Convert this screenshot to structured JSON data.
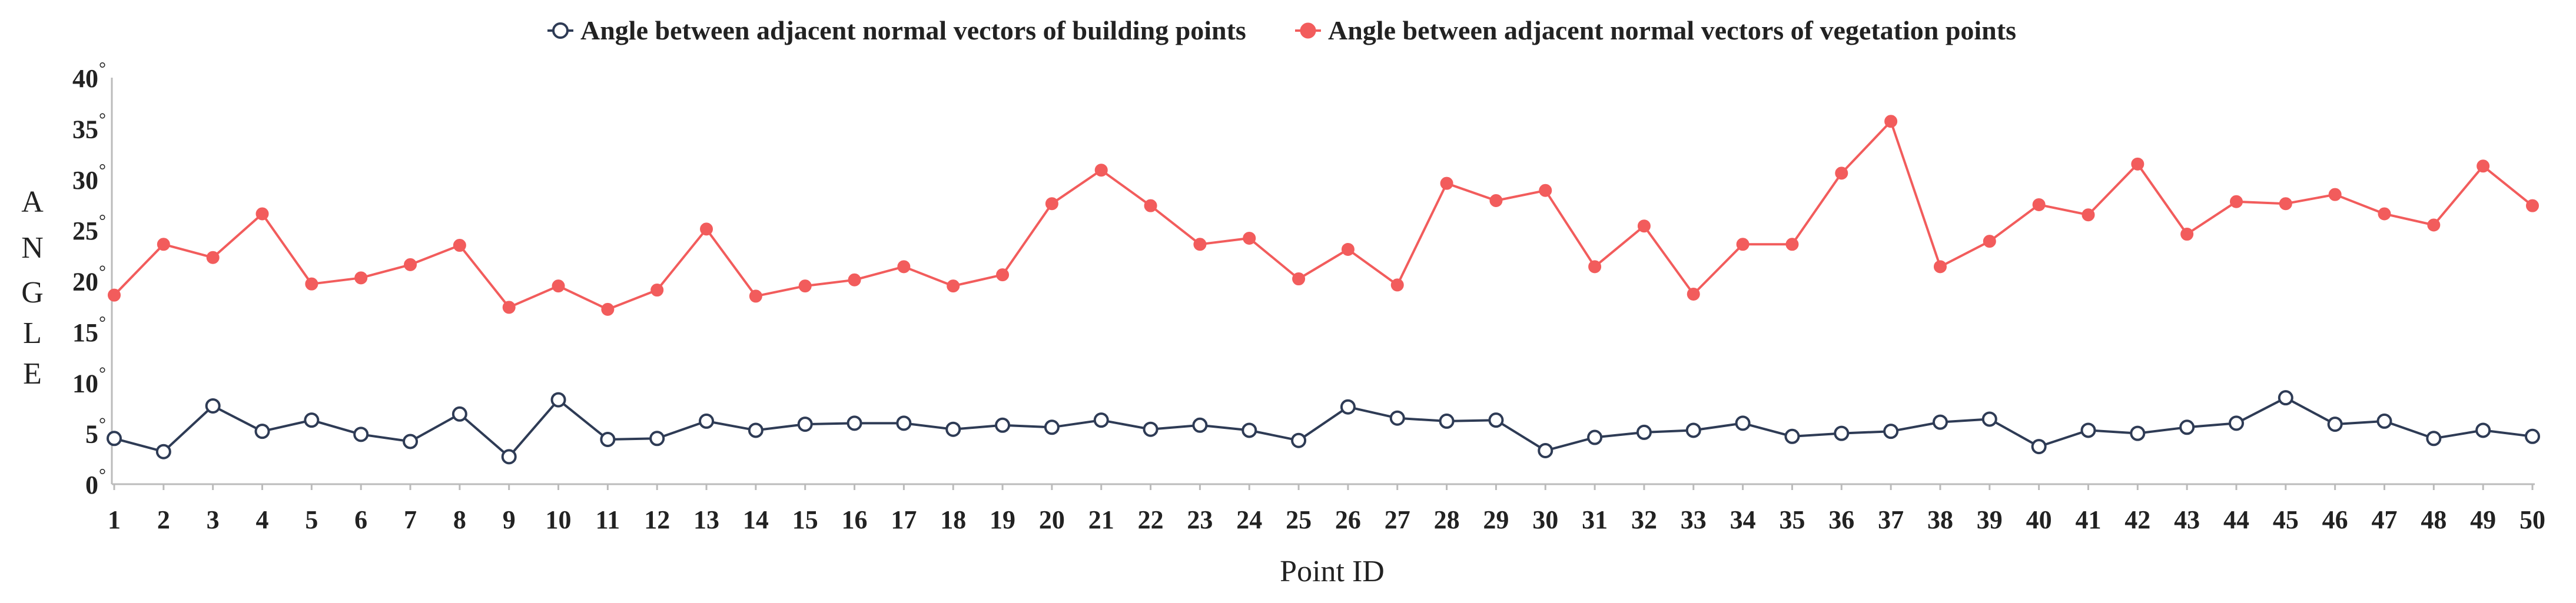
{
  "chart_data": {
    "type": "line",
    "title": "",
    "xlabel": "Point ID",
    "ylabel": [
      "A",
      "N",
      "G",
      "L",
      "E"
    ],
    "degree_symbol": "°",
    "x": [
      1,
      2,
      3,
      4,
      5,
      6,
      7,
      8,
      9,
      10,
      11,
      12,
      13,
      14,
      15,
      16,
      17,
      18,
      19,
      20,
      21,
      22,
      23,
      24,
      25,
      26,
      27,
      28,
      29,
      30,
      31,
      32,
      33,
      34,
      35,
      36,
      37,
      38,
      39,
      40,
      41,
      42,
      43,
      44,
      45,
      46,
      47,
      48,
      49,
      50
    ],
    "xticks": [
      "1",
      "2",
      "3",
      "4",
      "5",
      "6",
      "7",
      "8",
      "9",
      "10",
      "11",
      "12",
      "13",
      "14",
      "15",
      "16",
      "17",
      "18",
      "19",
      "20",
      "21",
      "22",
      "23",
      "24",
      "25",
      "26",
      "27",
      "28",
      "29",
      "30",
      "31",
      "32",
      "33",
      "34",
      "35",
      "36",
      "37",
      "38",
      "39",
      "40",
      "41",
      "42",
      "43",
      "44",
      "45",
      "46",
      "47",
      "48",
      "49",
      "50"
    ],
    "yticks": [
      0,
      5,
      10,
      15,
      20,
      25,
      30,
      35,
      40
    ],
    "ytick_labels": [
      "0",
      "5",
      "10",
      "15",
      "20",
      "25",
      "30",
      "35",
      "40"
    ],
    "ylim": [
      0,
      40
    ],
    "grid": false,
    "legend_position": "top-center",
    "series": [
      {
        "name": "Angle between adjacent normal vectors of building points",
        "color": "#2e3b55",
        "marker": "open-circle",
        "values": [
          4.5,
          3.2,
          7.7,
          5.2,
          6.3,
          4.9,
          4.2,
          6.9,
          2.7,
          8.3,
          4.4,
          4.5,
          6.2,
          5.3,
          5.9,
          6.0,
          6.0,
          5.4,
          5.8,
          5.6,
          6.3,
          5.4,
          5.8,
          5.3,
          4.3,
          7.6,
          6.5,
          6.2,
          6.3,
          3.3,
          4.6,
          5.1,
          5.3,
          6.0,
          4.7,
          5.0,
          5.2,
          6.1,
          6.4,
          3.7,
          5.3,
          5.0,
          5.6,
          6.0,
          8.5,
          5.9,
          6.2,
          4.5,
          5.3,
          4.7
        ]
      },
      {
        "name": "Angle between adjacent normal vectors of vegetation points",
        "color": "#f25c5c",
        "marker": "filled-circle",
        "values": [
          18.6,
          23.6,
          22.3,
          26.6,
          19.7,
          20.3,
          21.6,
          23.5,
          17.4,
          19.5,
          17.2,
          19.1,
          25.1,
          18.5,
          19.5,
          20.1,
          21.4,
          19.5,
          20.6,
          27.6,
          30.9,
          27.4,
          23.6,
          24.2,
          20.2,
          23.1,
          19.6,
          29.6,
          27.9,
          28.9,
          21.4,
          25.4,
          18.7,
          23.6,
          23.6,
          30.6,
          35.7,
          21.4,
          23.9,
          27.5,
          26.5,
          31.5,
          24.6,
          27.8,
          27.6,
          28.5,
          26.6,
          25.5,
          31.3,
          27.4
        ]
      }
    ]
  }
}
